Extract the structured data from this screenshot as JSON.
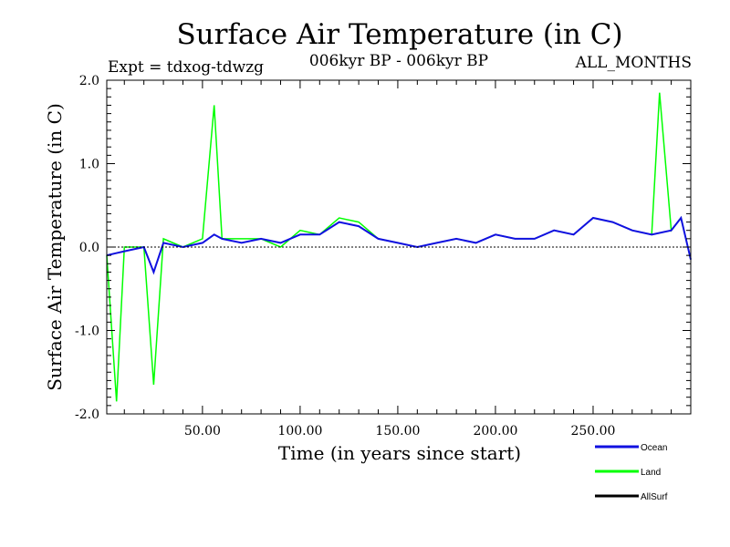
{
  "chart_data": {
    "type": "line",
    "title": "Surface Air Temperature (in C)",
    "subtitle_left": "Expt = tdxog-tdwzg",
    "subtitle_center": "006kyr BP - 006kyr BP",
    "subtitle_right": "ALL_MONTHS",
    "xlabel": "Time (in years since start)",
    "ylabel": "Surface Air Temperature (in C)",
    "xlim": [
      1,
      300
    ],
    "ylim": [
      -2.0,
      2.0
    ],
    "x_ticks": [
      50,
      100,
      150,
      200,
      250
    ],
    "x_tick_labels": [
      "50.00",
      "100.00",
      "150.00",
      "200.00",
      "250.00"
    ],
    "y_ticks": [
      -2.0,
      -1.0,
      0.0,
      1.0,
      2.0
    ],
    "y_tick_labels": [
      "-2.0",
      "-1.0",
      "0.0",
      "1.0",
      "2.0"
    ],
    "zero_line": true,
    "grid": false,
    "legend_position": "bottom-right",
    "series": [
      {
        "name": "Ocean",
        "color": "#1010e0",
        "x": [
          1,
          10,
          20,
          25,
          30,
          40,
          50,
          56,
          60,
          70,
          80,
          90,
          100,
          110,
          120,
          130,
          140,
          150,
          160,
          170,
          180,
          190,
          200,
          210,
          220,
          230,
          240,
          250,
          260,
          270,
          280,
          290,
          295,
          300
        ],
        "values": [
          -0.1,
          -0.05,
          0.0,
          -0.3,
          0.05,
          0.0,
          0.05,
          0.15,
          0.1,
          0.05,
          0.1,
          0.05,
          0.15,
          0.15,
          0.3,
          0.25,
          0.1,
          0.05,
          0.0,
          0.05,
          0.1,
          0.05,
          0.15,
          0.1,
          0.1,
          0.2,
          0.15,
          0.35,
          0.3,
          0.2,
          0.15,
          0.2,
          0.35,
          -0.15
        ]
      },
      {
        "name": "Land",
        "color": "#00ff00",
        "x": [
          1,
          6,
          10,
          20,
          25,
          30,
          40,
          50,
          56,
          60,
          70,
          80,
          90,
          100,
          110,
          120,
          130,
          140,
          150,
          160,
          170,
          180,
          190,
          200,
          210,
          220,
          230,
          240,
          250,
          260,
          270,
          280,
          284,
          290,
          295,
          300
        ],
        "values": [
          -0.1,
          -1.85,
          0.0,
          0.0,
          -1.65,
          0.1,
          0.0,
          0.1,
          1.7,
          0.1,
          0.1,
          0.1,
          0.0,
          0.2,
          0.15,
          0.35,
          0.3,
          0.1,
          0.05,
          0.0,
          0.05,
          0.1,
          0.05,
          0.15,
          0.1,
          0.1,
          0.2,
          0.15,
          0.35,
          0.3,
          0.2,
          0.15,
          1.85,
          0.2,
          0.35,
          -0.15
        ]
      },
      {
        "name": "AllSurf",
        "color": "#000000",
        "x": [],
        "values": []
      }
    ]
  }
}
